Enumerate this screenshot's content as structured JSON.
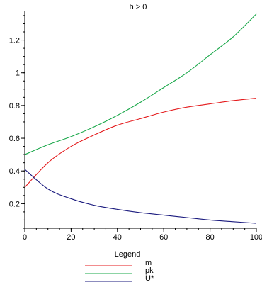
{
  "chart_data": {
    "type": "line",
    "title": "h > 0",
    "xlabel": "",
    "ylabel": "",
    "xlim": [
      0,
      100
    ],
    "ylim": [
      0.05,
      1.38
    ],
    "x_ticks": [
      "0",
      "20",
      "40",
      "60",
      "80",
      "100"
    ],
    "y_ticks": [
      "0.2",
      "0.4",
      "0.6",
      "0.8",
      "1",
      "1.2"
    ],
    "x_tick_values": [
      0,
      20,
      40,
      60,
      80,
      100
    ],
    "y_tick_values": [
      0.2,
      0.4,
      0.6,
      0.8,
      1.0,
      1.2
    ],
    "grid": false,
    "legend": {
      "title": "Legend",
      "placement": "bottom-center"
    },
    "x": [
      0,
      10,
      20,
      30,
      40,
      50,
      60,
      70,
      80,
      90,
      100
    ],
    "series": [
      {
        "name": "m",
        "color": "#e41a1c",
        "values": [
          0.3,
          0.45,
          0.55,
          0.62,
          0.68,
          0.72,
          0.76,
          0.79,
          0.81,
          0.83,
          0.845
        ]
      },
      {
        "name": "pk",
        "color": "#1aa84a",
        "values": [
          0.5,
          0.56,
          0.61,
          0.67,
          0.74,
          0.82,
          0.91,
          1.0,
          1.11,
          1.22,
          1.36
        ]
      },
      {
        "name": "U*",
        "color": "#1a1a7e",
        "values": [
          0.41,
          0.29,
          0.23,
          0.19,
          0.165,
          0.145,
          0.13,
          0.115,
          0.1,
          0.09,
          0.08
        ]
      }
    ]
  }
}
